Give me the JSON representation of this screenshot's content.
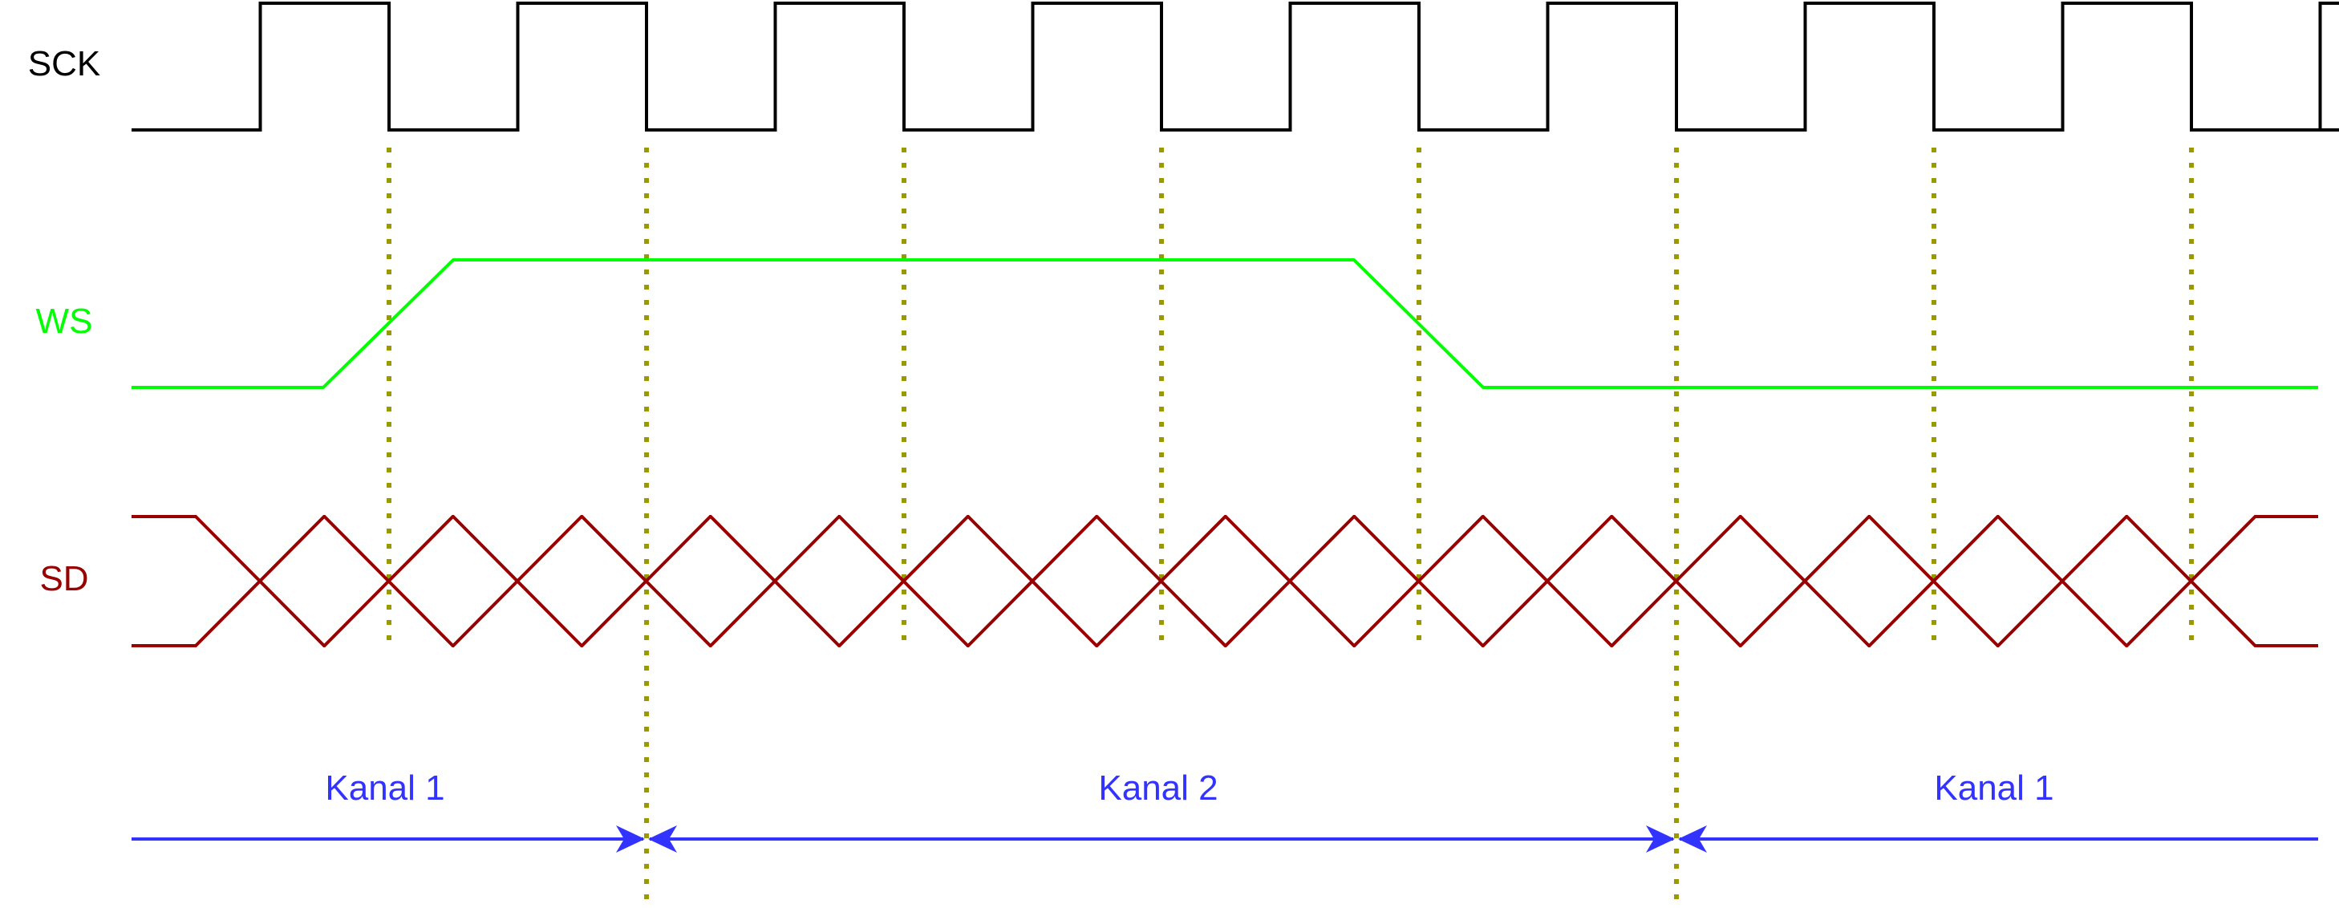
{
  "signals": [
    {
      "id": "sck",
      "label": "SCK",
      "color": "#000000"
    },
    {
      "id": "ws",
      "label": "WS",
      "color": "#00ff00"
    },
    {
      "id": "sd",
      "label": "SD",
      "color": "#990000"
    }
  ],
  "guide_color": "#999900",
  "spans": [
    {
      "label": "Kanal 1",
      "color": "#3333ff"
    },
    {
      "label": "Kanal 2",
      "color": "#3333ff"
    },
    {
      "label": "Kanal 1",
      "color": "#3333ff"
    }
  ]
}
